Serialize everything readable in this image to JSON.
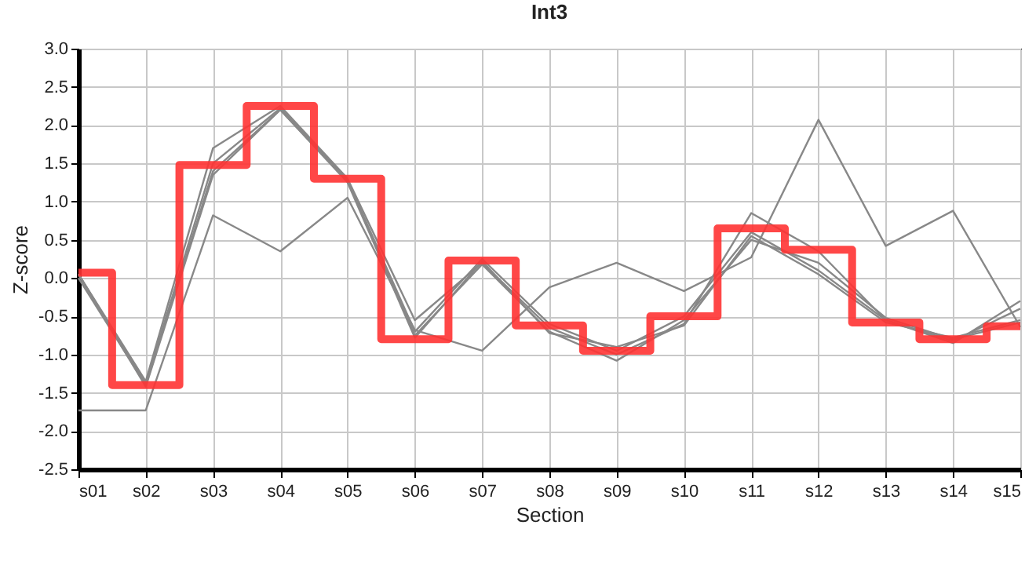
{
  "chart_data": {
    "type": "line",
    "title": "Int3",
    "xlabel": "Section",
    "ylabel": "Z-score",
    "categories": [
      "s01",
      "s02",
      "s03",
      "s04",
      "s05",
      "s06",
      "s07",
      "s08",
      "s09",
      "s10",
      "s11",
      "s12",
      "s13",
      "s14",
      "s15"
    ],
    "series": [
      {
        "color": "#888888",
        "values": [
          -1.73,
          -1.73,
          0.82,
          0.35,
          1.05,
          -0.68,
          -0.95,
          -0.12,
          0.2,
          -0.17,
          0.27,
          2.07,
          0.42,
          0.88,
          -0.64
        ]
      },
      {
        "color": "#888888",
        "values": [
          0.05,
          -1.35,
          1.7,
          2.25,
          1.3,
          -0.55,
          0.2,
          -0.65,
          -1.0,
          -0.6,
          0.85,
          0.35,
          -0.55,
          -0.85,
          -0.3
        ]
      },
      {
        "color": "#888888",
        "values": [
          0.05,
          -1.38,
          1.5,
          2.22,
          1.28,
          -0.7,
          0.25,
          -0.6,
          -0.95,
          -0.5,
          0.6,
          0.1,
          -0.55,
          -0.82,
          -0.4
        ]
      },
      {
        "color": "#888888",
        "values": [
          0.0,
          -1.4,
          1.4,
          2.2,
          1.27,
          -0.75,
          0.18,
          -0.7,
          -1.08,
          -0.55,
          0.5,
          0.2,
          -0.52,
          -0.8,
          -0.58
        ]
      },
      {
        "color": "#888888",
        "values": [
          0.05,
          -1.42,
          1.35,
          2.2,
          1.25,
          -0.78,
          0.22,
          -0.72,
          -0.9,
          -0.62,
          0.55,
          0.05,
          -0.58,
          -0.78,
          -0.55
        ]
      },
      {
        "type": "step",
        "color": "#ff3333",
        "values": [
          0.07,
          -1.4,
          1.48,
          2.25,
          1.3,
          -0.8,
          0.23,
          -0.62,
          -0.95,
          -0.5,
          0.65,
          0.37,
          -0.58,
          -0.8,
          -0.63
        ]
      }
    ],
    "ylim": [
      -2.5,
      3.0
    ],
    "yticks": [
      {
        "value": -2.5,
        "label": "-2.5"
      },
      {
        "value": -2,
        "label": "-2.0"
      },
      {
        "value": -1.5,
        "label": "-1.5"
      },
      {
        "value": -1,
        "label": "-1.0"
      },
      {
        "value": -0.5,
        "label": "-0.5"
      },
      {
        "value": 0,
        "label": "0.0"
      },
      {
        "value": 0.5,
        "label": "0.5"
      },
      {
        "value": 1,
        "label": "1.0"
      },
      {
        "value": 1.5,
        "label": "1.5"
      },
      {
        "value": 2,
        "label": "2.0"
      },
      {
        "value": 2.5,
        "label": "2.5"
      },
      {
        "value": 3,
        "label": "3.0"
      }
    ],
    "grid": true
  }
}
